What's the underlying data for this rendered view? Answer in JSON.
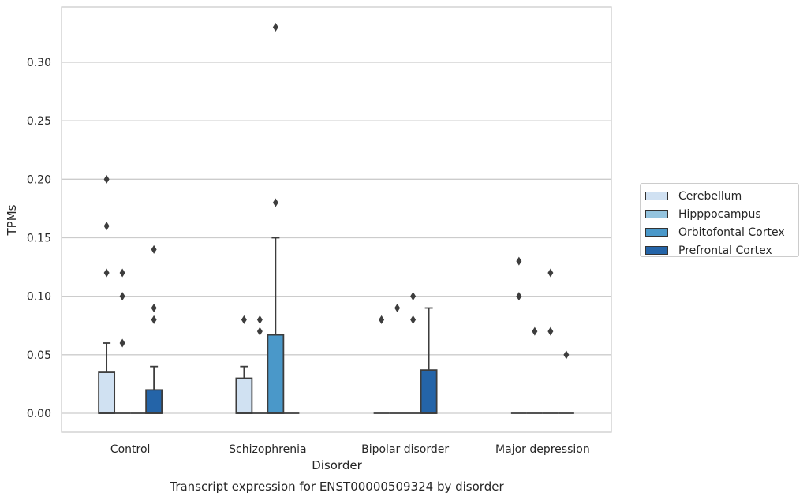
{
  "chart_data": {
    "type": "box",
    "title": "Transcript expression for ENST00000509324 by disorder",
    "xlabel": "Disorder",
    "ylabel": "TPMs",
    "ylim": [
      -0.016,
      0.348
    ],
    "yticks": [
      0.0,
      0.05,
      0.1,
      0.15,
      0.2,
      0.25,
      0.3
    ],
    "ytick_labels": [
      "0.00",
      "0.05",
      "0.10",
      "0.15",
      "0.20",
      "0.25",
      "0.30"
    ],
    "grid": true,
    "legend_position": "right",
    "categories": [
      "Control",
      "Schizophrenia",
      "Bipolar disorder",
      "Major depression"
    ],
    "series": [
      {
        "name": "Cerebellum",
        "color": "#d0e1f2",
        "boxes": [
          {
            "q1": 0.0,
            "median": 0.0,
            "q3": 0.035,
            "whisker_low": 0.0,
            "whisker_high": 0.06,
            "outliers": [
              0.2,
              0.16,
              0.12
            ]
          },
          {
            "q1": 0.0,
            "median": 0.0,
            "q3": 0.03,
            "whisker_low": 0.0,
            "whisker_high": 0.04,
            "outliers": [
              0.08
            ]
          },
          {
            "q1": 0.0,
            "median": 0.0,
            "q3": 0.0,
            "whisker_low": 0.0,
            "whisker_high": 0.0,
            "outliers": [
              0.08
            ]
          },
          {
            "q1": 0.0,
            "median": 0.0,
            "q3": 0.0,
            "whisker_low": 0.0,
            "whisker_high": 0.0,
            "outliers": [
              0.13,
              0.1
            ]
          }
        ]
      },
      {
        "name": "Hipppocampus",
        "color": "#94c4df",
        "boxes": [
          {
            "q1": 0.0,
            "median": 0.0,
            "q3": 0.0,
            "whisker_low": 0.0,
            "whisker_high": 0.0,
            "outliers": [
              0.12,
              0.1,
              0.06
            ]
          },
          {
            "q1": 0.0,
            "median": 0.0,
            "q3": 0.0,
            "whisker_low": 0.0,
            "whisker_high": 0.0,
            "outliers": [
              0.08,
              0.07
            ]
          },
          {
            "q1": 0.0,
            "median": 0.0,
            "q3": 0.0,
            "whisker_low": 0.0,
            "whisker_high": 0.0,
            "outliers": [
              0.09
            ]
          },
          {
            "q1": 0.0,
            "median": 0.0,
            "q3": 0.0,
            "whisker_low": 0.0,
            "whisker_high": 0.0,
            "outliers": [
              0.07
            ]
          }
        ]
      },
      {
        "name": "Orbitofontal Cortex",
        "color": "#4a98c9",
        "boxes": [
          {
            "q1": 0.0,
            "median": 0.0,
            "q3": 0.0,
            "whisker_low": 0.0,
            "whisker_high": 0.0,
            "outliers": []
          },
          {
            "q1": 0.0,
            "median": 0.0,
            "q3": 0.067,
            "whisker_low": 0.0,
            "whisker_high": 0.15,
            "outliers": [
              0.33,
              0.18
            ]
          },
          {
            "q1": 0.0,
            "median": 0.0,
            "q3": 0.0,
            "whisker_low": 0.0,
            "whisker_high": 0.0,
            "outliers": [
              0.1,
              0.08
            ]
          },
          {
            "q1": 0.0,
            "median": 0.0,
            "q3": 0.0,
            "whisker_low": 0.0,
            "whisker_high": 0.0,
            "outliers": [
              0.12,
              0.07
            ]
          }
        ]
      },
      {
        "name": "Prefrontal Cortex",
        "color": "#2464a8",
        "boxes": [
          {
            "q1": 0.0,
            "median": 0.0,
            "q3": 0.02,
            "whisker_low": 0.0,
            "whisker_high": 0.04,
            "outliers": [
              0.14,
              0.09,
              0.08
            ]
          },
          {
            "q1": 0.0,
            "median": 0.0,
            "q3": 0.0,
            "whisker_low": 0.0,
            "whisker_high": 0.0,
            "outliers": []
          },
          {
            "q1": 0.0,
            "median": 0.0,
            "q3": 0.037,
            "whisker_low": 0.0,
            "whisker_high": 0.09,
            "outliers": []
          },
          {
            "q1": 0.0,
            "median": 0.0,
            "q3": 0.0,
            "whisker_low": 0.0,
            "whisker_high": 0.0,
            "outliers": [
              0.05
            ]
          }
        ]
      }
    ]
  }
}
